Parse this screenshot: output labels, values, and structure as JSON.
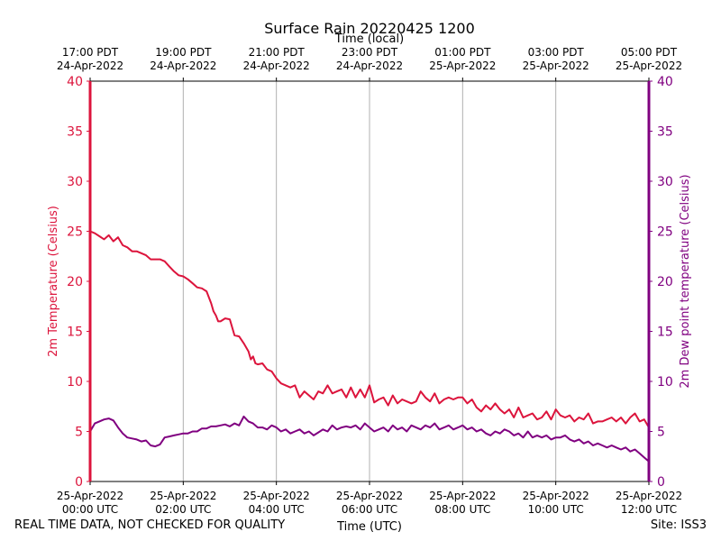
{
  "chart_data": {
    "type": "line",
    "title": "Surface Rain 20220425 1200",
    "top_xlabel": "Time (local)",
    "xlabel": "Time (UTC)",
    "ylabel_left": "2m Temperature (Celsius)",
    "ylabel_right": "2m Dew point temperature (Celsius)",
    "x_unit": "hours since 25-Apr-2022 00:00 UTC",
    "xlim": [
      0,
      12
    ],
    "ylim_left": [
      0,
      40
    ],
    "ylim_right": [
      0,
      40
    ],
    "yticks_left": [
      "0",
      "5",
      "10",
      "15",
      "20",
      "25",
      "30",
      "35",
      "40"
    ],
    "yticks_right": [
      "0",
      "5",
      "10",
      "15",
      "20",
      "25",
      "30",
      "35",
      "40"
    ],
    "xticks_bottom": [
      {
        "x": 0,
        "line1": "25-Apr-2022",
        "line2": "00:00 UTC"
      },
      {
        "x": 2,
        "line1": "25-Apr-2022",
        "line2": "02:00 UTC"
      },
      {
        "x": 4,
        "line1": "25-Apr-2022",
        "line2": "04:00 UTC"
      },
      {
        "x": 6,
        "line1": "25-Apr-2022",
        "line2": "06:00 UTC"
      },
      {
        "x": 8,
        "line1": "25-Apr-2022",
        "line2": "08:00 UTC"
      },
      {
        "x": 10,
        "line1": "25-Apr-2022",
        "line2": "10:00 UTC"
      },
      {
        "x": 12,
        "line1": "25-Apr-2022",
        "line2": "12:00 UTC"
      }
    ],
    "xticks_top": [
      {
        "x": 0,
        "line1": "17:00 PDT",
        "line2": "24-Apr-2022"
      },
      {
        "x": 2,
        "line1": "19:00 PDT",
        "line2": "24-Apr-2022"
      },
      {
        "x": 4,
        "line1": "21:00 PDT",
        "line2": "24-Apr-2022"
      },
      {
        "x": 6,
        "line1": "23:00 PDT",
        "line2": "24-Apr-2022"
      },
      {
        "x": 8,
        "line1": "01:00 PDT",
        "line2": "25-Apr-2022"
      },
      {
        "x": 10,
        "line1": "03:00 PDT",
        "line2": "25-Apr-2022"
      },
      {
        "x": 12,
        "line1": "05:00 PDT",
        "line2": "25-Apr-2022"
      }
    ],
    "grid": "vertical",
    "series": [
      {
        "name": "2m Temperature",
        "axis": "left",
        "color": "#dc143c",
        "x": [
          0,
          0.1,
          0.2,
          0.3,
          0.4,
          0.5,
          0.6,
          0.7,
          0.8,
          0.9,
          1.0,
          1.2,
          1.3,
          1.5,
          1.6,
          1.7,
          1.8,
          1.9,
          2.0,
          2.1,
          2.2,
          2.3,
          2.4,
          2.5,
          2.6,
          2.65,
          2.7,
          2.75,
          2.8,
          2.9,
          3.0,
          3.1,
          3.2,
          3.3,
          3.4,
          3.45,
          3.5,
          3.55,
          3.6,
          3.7,
          3.8,
          3.9,
          4.0,
          4.1,
          4.2,
          4.3,
          4.4,
          4.5,
          4.6,
          4.7,
          4.8,
          4.9,
          5.0,
          5.1,
          5.2,
          5.3,
          5.4,
          5.5,
          5.6,
          5.7,
          5.8,
          5.9,
          6.0,
          6.1,
          6.2,
          6.3,
          6.4,
          6.5,
          6.6,
          6.7,
          6.8,
          6.9,
          7.0,
          7.1,
          7.2,
          7.3,
          7.4,
          7.5,
          7.6,
          7.7,
          7.8,
          7.9,
          8.0,
          8.1,
          8.2,
          8.3,
          8.4,
          8.5,
          8.6,
          8.7,
          8.8,
          8.9,
          9.0,
          9.1,
          9.2,
          9.3,
          9.4,
          9.5,
          9.6,
          9.7,
          9.8,
          9.9,
          10.0,
          10.1,
          10.2,
          10.3,
          10.4,
          10.5,
          10.6,
          10.7,
          10.8,
          10.9,
          11.0,
          11.1,
          11.2,
          11.3,
          11.4,
          11.5,
          11.6,
          11.7,
          11.8,
          11.9,
          12.0
        ],
        "values": [
          25.0,
          24.8,
          24.5,
          24.2,
          24.6,
          24.0,
          24.4,
          23.6,
          23.4,
          23.0,
          23.0,
          22.6,
          22.2,
          22.2,
          22.0,
          21.5,
          21.0,
          20.6,
          20.5,
          20.2,
          19.8,
          19.4,
          19.3,
          19.0,
          17.8,
          17.0,
          16.6,
          16.0,
          16.0,
          16.3,
          16.2,
          14.6,
          14.5,
          13.8,
          13.0,
          12.2,
          12.5,
          11.8,
          11.7,
          11.8,
          11.2,
          11.0,
          10.3,
          9.8,
          9.6,
          9.4,
          9.6,
          8.4,
          9.0,
          8.6,
          8.2,
          9.0,
          8.8,
          9.6,
          8.8,
          9.0,
          9.2,
          8.4,
          9.4,
          8.4,
          9.2,
          8.4,
          9.6,
          7.9,
          8.2,
          8.4,
          7.6,
          8.6,
          7.8,
          8.2,
          8.0,
          7.8,
          8.0,
          9.0,
          8.4,
          8.0,
          8.8,
          7.8,
          8.2,
          8.4,
          8.2,
          8.4,
          8.4,
          7.8,
          8.2,
          7.4,
          7.0,
          7.6,
          7.2,
          7.8,
          7.2,
          6.8,
          7.2,
          6.4,
          7.4,
          6.4,
          6.6,
          6.8,
          6.2,
          6.4,
          7.0,
          6.2,
          7.2,
          6.6,
          6.4,
          6.6,
          6.0,
          6.4,
          6.2,
          6.8,
          5.8,
          6.0,
          6.0,
          6.2,
          6.4,
          6.0,
          6.4,
          5.8,
          6.4,
          6.8,
          6.0,
          6.2,
          5.4
        ]
      },
      {
        "name": "2m Dew point temperature",
        "axis": "right",
        "color": "#800080",
        "x": [
          0,
          0.1,
          0.2,
          0.3,
          0.4,
          0.5,
          0.6,
          0.7,
          0.8,
          0.9,
          1.0,
          1.1,
          1.2,
          1.3,
          1.4,
          1.5,
          1.6,
          1.7,
          1.8,
          1.9,
          2.0,
          2.1,
          2.2,
          2.3,
          2.4,
          2.5,
          2.6,
          2.7,
          2.8,
          2.9,
          3.0,
          3.1,
          3.2,
          3.3,
          3.4,
          3.5,
          3.6,
          3.7,
          3.8,
          3.9,
          4.0,
          4.1,
          4.2,
          4.3,
          4.4,
          4.5,
          4.6,
          4.7,
          4.8,
          4.9,
          5.0,
          5.1,
          5.2,
          5.3,
          5.4,
          5.5,
          5.6,
          5.7,
          5.8,
          5.9,
          6.0,
          6.1,
          6.2,
          6.3,
          6.4,
          6.5,
          6.6,
          6.7,
          6.8,
          6.9,
          7.0,
          7.1,
          7.2,
          7.3,
          7.4,
          7.5,
          7.6,
          7.7,
          7.8,
          7.9,
          8.0,
          8.1,
          8.2,
          8.3,
          8.4,
          8.5,
          8.6,
          8.7,
          8.8,
          8.9,
          9.0,
          9.1,
          9.2,
          9.3,
          9.4,
          9.5,
          9.6,
          9.7,
          9.8,
          9.9,
          10.0,
          10.1,
          10.2,
          10.3,
          10.4,
          10.5,
          10.6,
          10.7,
          10.8,
          10.9,
          11.0,
          11.1,
          11.2,
          11.3,
          11.4,
          11.5,
          11.6,
          11.7,
          11.8,
          11.9,
          12.0
        ],
        "values": [
          5.0,
          5.8,
          6.0,
          6.2,
          6.3,
          6.1,
          5.4,
          4.8,
          4.4,
          4.3,
          4.2,
          4.0,
          4.1,
          3.6,
          3.5,
          3.7,
          4.4,
          4.5,
          4.6,
          4.7,
          4.8,
          4.8,
          5.0,
          5.0,
          5.3,
          5.3,
          5.5,
          5.5,
          5.6,
          5.7,
          5.5,
          5.8,
          5.6,
          6.5,
          6.0,
          5.8,
          5.4,
          5.4,
          5.2,
          5.6,
          5.4,
          5.0,
          5.2,
          4.8,
          5.0,
          5.2,
          4.8,
          5.0,
          4.6,
          4.9,
          5.2,
          5.0,
          5.6,
          5.2,
          5.4,
          5.5,
          5.4,
          5.6,
          5.2,
          5.8,
          5.4,
          5.0,
          5.2,
          5.4,
          5.0,
          5.6,
          5.2,
          5.4,
          5.0,
          5.6,
          5.4,
          5.2,
          5.6,
          5.4,
          5.8,
          5.2,
          5.4,
          5.6,
          5.2,
          5.4,
          5.6,
          5.2,
          5.4,
          5.0,
          5.2,
          4.8,
          4.6,
          5.0,
          4.8,
          5.2,
          5.0,
          4.6,
          4.8,
          4.4,
          5.0,
          4.4,
          4.6,
          4.4,
          4.6,
          4.2,
          4.4,
          4.4,
          4.6,
          4.2,
          4.0,
          4.2,
          3.8,
          4.0,
          3.6,
          3.8,
          3.6,
          3.4,
          3.6,
          3.4,
          3.2,
          3.4,
          3.0,
          3.2,
          2.8,
          2.4,
          2.0
        ]
      }
    ]
  },
  "footer": {
    "left_note": "REAL TIME DATA, NOT CHECKED FOR QUALITY",
    "site": "Site: ISS3"
  }
}
